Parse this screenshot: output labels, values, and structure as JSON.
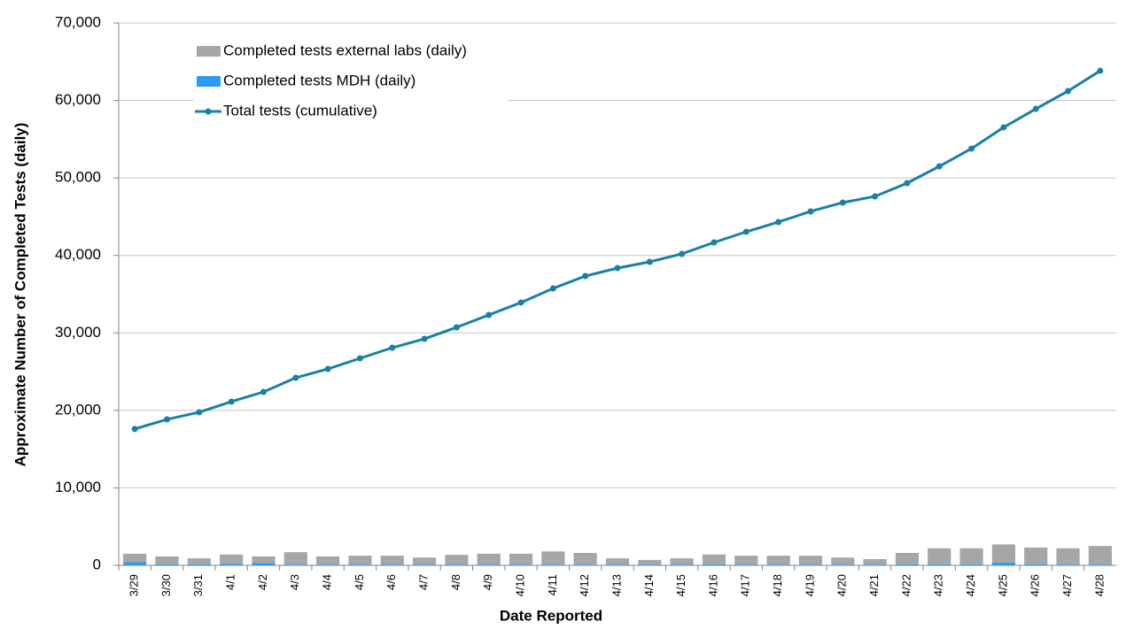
{
  "chart_data": {
    "type": "combo",
    "x_label": "Date Reported",
    "y_label": "Approximate Number of Completed Tests (daily)",
    "categories": [
      "3/29",
      "3/30",
      "3/31",
      "4/1",
      "4/2",
      "4/3",
      "4/4",
      "4/5",
      "4/6",
      "4/7",
      "4/8",
      "4/9",
      "4/10",
      "4/11",
      "4/12",
      "4/13",
      "4/14",
      "4/15",
      "4/16",
      "4/17",
      "4/18",
      "4/19",
      "4/20",
      "4/21",
      "4/22",
      "4/23",
      "4/24",
      "4/25",
      "4/26",
      "4/27",
      "4/28"
    ],
    "ylim": [
      0,
      70000
    ],
    "yticks": [
      0,
      {
        "value": 10000,
        "label": "10,000"
      },
      {
        "value": 20000,
        "label": "20,000"
      },
      {
        "value": 30000,
        "label": "30,000"
      },
      {
        "value": 40000,
        "label": "40,000"
      },
      {
        "value": 50000,
        "label": "50,000"
      },
      {
        "value": 60000,
        "label": "60,000"
      },
      {
        "value": 70000,
        "label": "70,000"
      }
    ],
    "grid": true,
    "series": [
      {
        "name": "Completed tests external labs (daily)",
        "type": "bar",
        "stack": true,
        "color": "#a6a6a6",
        "values": [
          1100,
          1000,
          750,
          1200,
          850,
          1600,
          1050,
          1150,
          1150,
          900,
          1250,
          1400,
          1400,
          1700,
          1500,
          800,
          600,
          800,
          1250,
          1150,
          1150,
          1150,
          900,
          700,
          1450,
          2050,
          2050,
          2350,
          2150,
          2100,
          2400
        ]
      },
      {
        "name": "Completed tests MDH (daily)",
        "type": "bar",
        "stack": true,
        "color": "#2e9bf0",
        "values": [
          400,
          150,
          150,
          200,
          300,
          100,
          100,
          100,
          100,
          100,
          100,
          100,
          100,
          100,
          100,
          100,
          100,
          100,
          150,
          100,
          100,
          100,
          100,
          100,
          150,
          150,
          150,
          350,
          150,
          100,
          100
        ]
      },
      {
        "name": "Total tests (cumulative)",
        "type": "line",
        "color": "#1a7fa8",
        "values": [
          17600,
          18840,
          19760,
          21130,
          22380,
          24210,
          25350,
          26720,
          28090,
          29230,
          30720,
          32320,
          33920,
          35740,
          37340,
          38370,
          39170,
          40200,
          41680,
          43050,
          44310,
          45680,
          46820,
          47620,
          49330,
          51500,
          53790,
          56530,
          58920,
          61210,
          63840
        ]
      }
    ]
  }
}
